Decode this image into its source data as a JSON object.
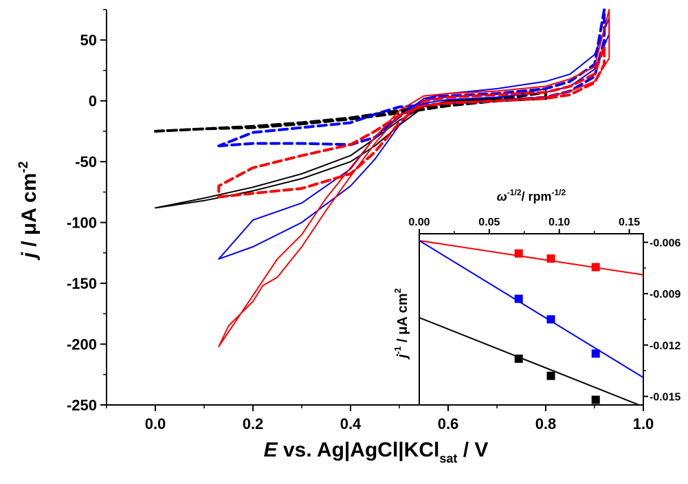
{
  "chart_data": [
    {
      "type": "line",
      "xlabel": {
        "main_italic": "E",
        "main": " vs. Ag|AgCl|KCl",
        "sub": "sat",
        "unit": " / V"
      },
      "ylabel": {
        "italic": "j",
        "text": " / μA cm",
        "sup": "-2"
      },
      "xlim": [
        -0.1,
        1.0
      ],
      "ylim": [
        -250,
        75
      ],
      "xticks": [
        0.0,
        0.2,
        0.4,
        0.6,
        0.8,
        1.0
      ],
      "xtick_labels": [
        "0.0",
        "0.2",
        "0.4",
        "0.6",
        "0.8",
        "1.0"
      ],
      "yticks": [
        -250,
        -200,
        -150,
        -100,
        -50,
        0,
        50
      ],
      "ytick_labels": [
        "-250",
        "-200",
        "-150",
        "-100",
        "-50",
        "0",
        "50"
      ],
      "grid": false,
      "legend": "none",
      "series": [
        {
          "color": "#000000",
          "style": "solid",
          "x": [
            0.0,
            0.1,
            0.2,
            0.3,
            0.4,
            0.45,
            0.5,
            0.55,
            0.6,
            0.7,
            0.8,
            0.8,
            0.7,
            0.6,
            0.55,
            0.5,
            0.45,
            0.4,
            0.3,
            0.2,
            0.1,
            0.0
          ],
          "y": [
            -88,
            -82,
            -74,
            -64,
            -50,
            -37,
            -20,
            -5,
            0,
            1,
            3,
            10,
            2,
            0,
            -5,
            -16,
            -31,
            -45,
            -60,
            -71,
            -80,
            -88
          ]
        },
        {
          "color": "#000000",
          "style": "dashed",
          "x": [
            0.0,
            0.1,
            0.2,
            0.3,
            0.4,
            0.5,
            0.6,
            0.7,
            0.8,
            0.8,
            0.7,
            0.6,
            0.5,
            0.4,
            0.3,
            0.2,
            0.1,
            0.0
          ],
          "y": [
            -25,
            -23,
            -22,
            -19,
            -15,
            -10,
            -4,
            0,
            2,
            7,
            1,
            -2,
            -8,
            -14,
            -18,
            -21,
            -23,
            -25
          ]
        },
        {
          "color": "#0000ff",
          "style": "solid",
          "x": [
            0.13,
            0.2,
            0.3,
            0.4,
            0.45,
            0.5,
            0.55,
            0.6,
            0.7,
            0.8,
            0.85,
            0.9,
            0.93,
            0.93,
            0.9,
            0.85,
            0.8,
            0.7,
            0.6,
            0.55,
            0.5,
            0.45,
            0.4,
            0.3,
            0.2,
            0.13
          ],
          "y": [
            -130,
            -120,
            -100,
            -70,
            -48,
            -20,
            2,
            6,
            10,
            16,
            22,
            38,
            68,
            55,
            26,
            12,
            7,
            3,
            1,
            -2,
            -12,
            -30,
            -56,
            -84,
            -98,
            -130
          ]
        },
        {
          "color": "#0000ff",
          "style": "dashed",
          "x": [
            0.13,
            0.2,
            0.3,
            0.4,
            0.45,
            0.5,
            0.55,
            0.6,
            0.7,
            0.8,
            0.85,
            0.9,
            0.92,
            0.92,
            0.9,
            0.85,
            0.8,
            0.7,
            0.6,
            0.5,
            0.45,
            0.4,
            0.3,
            0.2,
            0.13
          ],
          "y": [
            -37,
            -35,
            -35,
            -36,
            -30,
            -13,
            1,
            4,
            6,
            10,
            16,
            30,
            75,
            50,
            20,
            8,
            3,
            0,
            -2,
            -5,
            -11,
            -18,
            -22,
            -26,
            -37
          ]
        },
        {
          "color": "#ff0000",
          "style": "solid",
          "x": [
            0.13,
            0.15,
            0.2,
            0.25,
            0.3,
            0.35,
            0.4,
            0.45,
            0.5,
            0.55,
            0.6,
            0.7,
            0.8,
            0.85,
            0.9,
            0.93,
            0.93,
            0.9,
            0.85,
            0.8,
            0.7,
            0.6,
            0.55,
            0.5,
            0.45,
            0.4,
            0.35,
            0.3,
            0.25,
            0.22,
            0.2,
            0.15,
            0.13
          ],
          "y": [
            -202,
            -190,
            -160,
            -130,
            -110,
            -80,
            -55,
            -30,
            -8,
            4,
            6,
            8,
            12,
            18,
            28,
            75,
            35,
            16,
            8,
            3,
            0,
            -1,
            -4,
            -12,
            -35,
            -62,
            -90,
            -120,
            -145,
            -152,
            -165,
            -185,
            -202
          ]
        },
        {
          "color": "#ff0000",
          "style": "dashed",
          "x": [
            0.13,
            0.2,
            0.3,
            0.4,
            0.45,
            0.5,
            0.55,
            0.6,
            0.7,
            0.8,
            0.85,
            0.9,
            0.92,
            0.92,
            0.9,
            0.85,
            0.8,
            0.7,
            0.6,
            0.55,
            0.5,
            0.45,
            0.4,
            0.3,
            0.2,
            0.13
          ],
          "y": [
            -79,
            -76,
            -72,
            -60,
            -42,
            -18,
            0,
            3,
            5,
            7,
            12,
            22,
            45,
            30,
            15,
            5,
            2,
            0,
            -2,
            -4,
            -12,
            -25,
            -36,
            -45,
            -55,
            -70
          ]
        }
      ]
    },
    {
      "type": "scatter",
      "inset": true,
      "xlabel": {
        "italic": "ω",
        "sup1": "-1/2",
        "text": "/ rpm",
        "sup2": "-1/2"
      },
      "ylabel": {
        "italic": "j",
        "sup1": "-1",
        "text": " / μA cm",
        "sup2": "2"
      },
      "xlim": [
        0.0,
        0.16
      ],
      "ylim": [
        -0.0155,
        -0.0055
      ],
      "xticks": [
        0.0,
        0.05,
        0.1,
        0.15
      ],
      "xtick_labels": [
        "0.00",
        "0.05",
        "0.10",
        "0.15"
      ],
      "yticks": [
        -0.006,
        -0.009,
        -0.012,
        -0.015
      ],
      "ytick_labels": [
        "-0.006",
        "-0.009",
        "-0.012",
        "-0.015"
      ],
      "x_axis_position": "top",
      "y_axis_position": "right",
      "grid": false,
      "legend": "none",
      "series": [
        {
          "color": "#ff0000",
          "marker": "square",
          "x": [
            0.071,
            0.094,
            0.126
          ],
          "y": [
            -0.00665,
            -0.00695,
            -0.00745
          ],
          "fit": {
            "x": [
              0.0,
              0.16
            ],
            "y": [
              -0.0059,
              -0.0079
            ]
          }
        },
        {
          "color": "#0000ff",
          "marker": "square",
          "x": [
            0.071,
            0.094,
            0.126
          ],
          "y": [
            -0.0093,
            -0.0105,
            -0.0125
          ],
          "fit": {
            "x": [
              0.0,
              0.16
            ],
            "y": [
              -0.0059,
              -0.0139
            ]
          }
        },
        {
          "color": "#000000",
          "marker": "square",
          "x": [
            0.071,
            0.094,
            0.126
          ],
          "y": [
            -0.0128,
            -0.0138,
            -0.0152
          ],
          "fit": {
            "x": [
              0.0,
              0.16
            ],
            "y": [
              -0.0104,
              -0.0156
            ]
          }
        }
      ]
    }
  ]
}
